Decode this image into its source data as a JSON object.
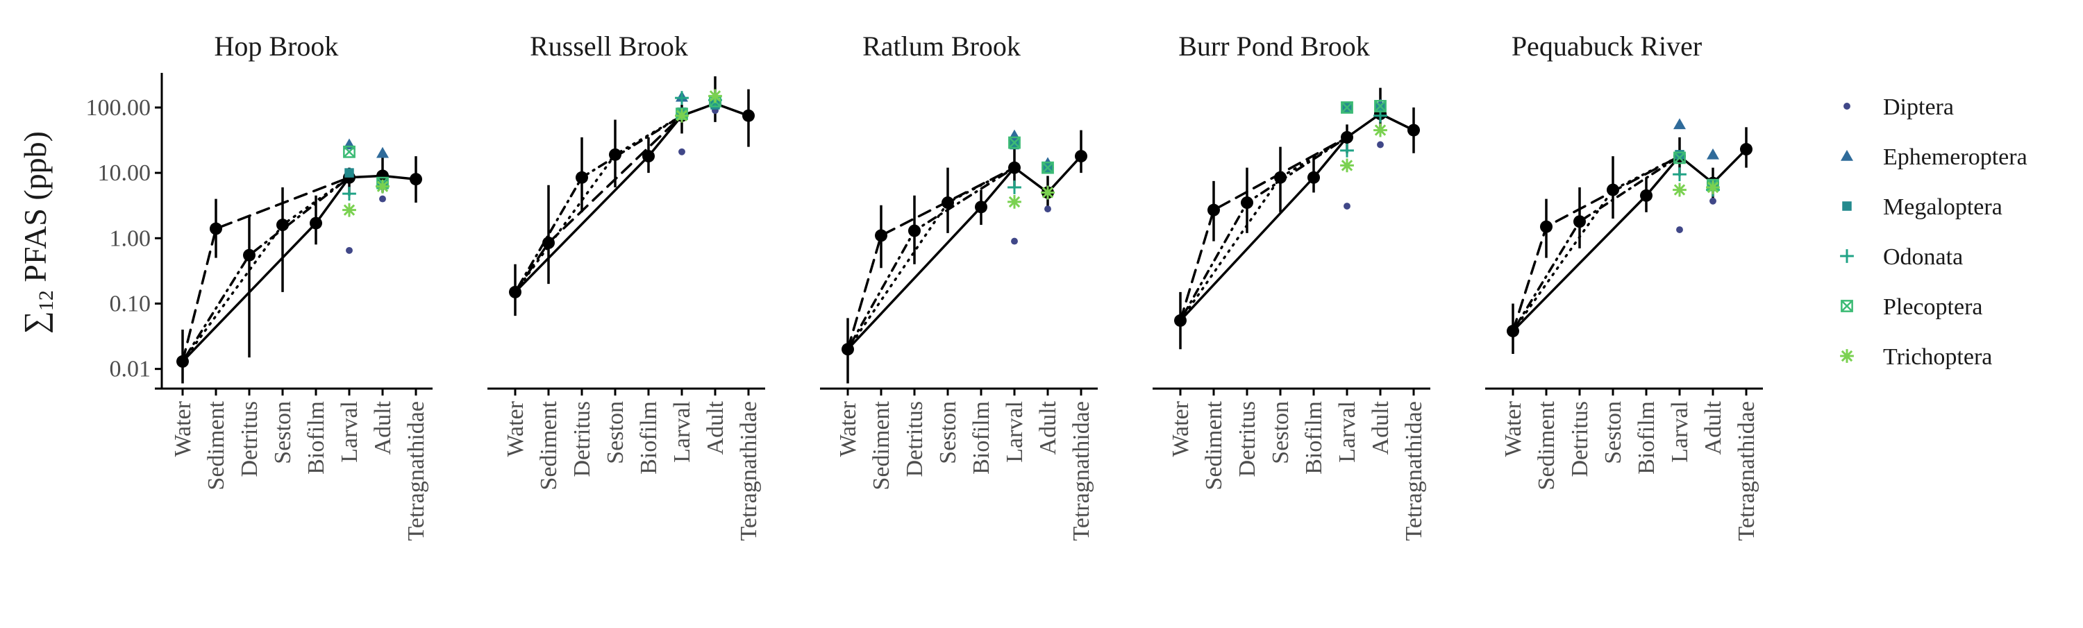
{
  "chart_data": {
    "type": "scatter",
    "ylabel": "∑12 PFAS (ppb)",
    "ylabel_parts": {
      "sigma": "∑",
      "subscript": "12",
      "rest": " PFAS (ppb)"
    },
    "y_scale": "log",
    "ylim": [
      0.005,
      300
    ],
    "y_ticks": [
      0.01,
      0.1,
      1,
      10,
      100
    ],
    "y_tick_labels": [
      "0.01",
      "0.10",
      "1.00",
      "10.00",
      "100.00"
    ],
    "categories": [
      "Water",
      "Sediment",
      "Detritus",
      "Seston",
      "Biofilm",
      "Larval",
      "Adult",
      "Tetragnathidae"
    ],
    "legend_position": "right",
    "taxa": [
      {
        "name": "Diptera",
        "marker": "circle",
        "color": "#404788"
      },
      {
        "name": "Ephemeroptera",
        "marker": "triangle",
        "color": "#2f6b9a"
      },
      {
        "name": "Megaloptera",
        "marker": "square",
        "color": "#238a8d"
      },
      {
        "name": "Odonata",
        "marker": "plus",
        "color": "#20a386"
      },
      {
        "name": "Plecoptera",
        "marker": "boxed-x",
        "color": "#3cbb75"
      },
      {
        "name": "Trichoptera",
        "marker": "asterisk",
        "color": "#7ad151"
      }
    ],
    "pathway_lines": [
      {
        "style": "solid",
        "from": "Water",
        "via": "Biofilm"
      },
      {
        "style": "dotted",
        "from": "Water",
        "via": "Seston"
      },
      {
        "style": "dotdash",
        "from": "Water",
        "via": "Detritus"
      },
      {
        "style": "dashed",
        "from": "Water",
        "via": "Sediment"
      }
    ],
    "panels": [
      {
        "title": "Hop Brook",
        "means": [
          0.013,
          1.4,
          0.55,
          1.6,
          1.7,
          8.5,
          9.0,
          8.0
        ],
        "err_low": [
          0.006,
          0.5,
          0.015,
          0.15,
          0.8,
          4.5,
          5.0,
          3.5
        ],
        "err_high": [
          0.04,
          4.0,
          2.2,
          6.0,
          4.5,
          12.0,
          20.0,
          18.0
        ],
        "taxa_values": {
          "Diptera": [
            0.65,
            4.0
          ],
          "Ephemeroptera": [
            27.0,
            20.0
          ],
          "Megaloptera": [
            10.0,
            6.5
          ],
          "Odonata": [
            4.8,
            6.2
          ],
          "Plecoptera": [
            21.0,
            7.0
          ],
          "Trichoptera": [
            2.7,
            6.2
          ]
        }
      },
      {
        "title": "Russell Brook",
        "means": [
          0.15,
          0.85,
          8.5,
          19.0,
          18.0,
          75.0,
          115.0,
          75.0
        ],
        "err_low": [
          0.065,
          0.2,
          2.5,
          6.0,
          10.0,
          40.0,
          60.0,
          25.0
        ],
        "err_high": [
          0.4,
          6.5,
          35.0,
          65.0,
          35.0,
          110.0,
          300.0,
          190.0
        ],
        "taxa_values": {
          "Diptera": [
            21.0,
            90.0
          ],
          "Ephemeroptera": [
            145.0,
            120.0
          ],
          "Megaloptera": [
            85.0,
            110.0
          ],
          "Odonata": [
            140.0,
            130.0
          ],
          "Plecoptera": [
            80.0,
            125.0
          ],
          "Trichoptera": [
            75.0,
            150.0
          ]
        }
      },
      {
        "title": "Ratlum Brook",
        "means": [
          0.02,
          1.1,
          1.3,
          3.5,
          3.0,
          12.0,
          5.0,
          18.0
        ],
        "err_low": [
          0.006,
          0.35,
          0.4,
          1.2,
          1.6,
          6.0,
          3.0,
          10.0
        ],
        "err_high": [
          0.06,
          3.2,
          4.5,
          12.0,
          5.5,
          25.0,
          9.0,
          45.0
        ],
        "taxa_values": {
          "Diptera": [
            0.9,
            2.8
          ],
          "Ephemeroptera": [
            37.0,
            14.0
          ],
          "Megaloptera": [
            27.0,
            12.0
          ],
          "Odonata": [
            6.0,
            5.0
          ],
          "Plecoptera": [
            29.0,
            12.0
          ],
          "Trichoptera": [
            3.6,
            5.0
          ]
        }
      },
      {
        "title": "Burr Pond Brook",
        "means": [
          0.055,
          2.7,
          3.5,
          8.5,
          8.5,
          35.0,
          80.0,
          45.0
        ],
        "err_low": [
          0.02,
          0.9,
          1.2,
          2.5,
          5.0,
          20.0,
          45.0,
          20.0
        ],
        "err_high": [
          0.15,
          7.5,
          12.0,
          25.0,
          18.0,
          55.0,
          200.0,
          100.0
        ],
        "taxa_values": {
          "Diptera": [
            3.1,
            27.0
          ],
          "Ephemeroptera": [
            100.0,
            110.0
          ],
          "Megaloptera": [
            100.0,
            100.0
          ],
          "Odonata": [
            22.0,
            75.0
          ],
          "Plecoptera": [
            100.0,
            105.0
          ],
          "Trichoptera": [
            13.0,
            45.0
          ]
        }
      },
      {
        "title": "Pequabuck River",
        "means": [
          0.038,
          1.5,
          1.8,
          5.5,
          4.5,
          18.0,
          7.0,
          23.0
        ],
        "err_low": [
          0.017,
          0.5,
          0.7,
          2.0,
          2.5,
          9.0,
          4.0,
          12.0
        ],
        "err_high": [
          0.1,
          4.0,
          6.0,
          18.0,
          8.5,
          35.0,
          12.0,
          50.0
        ],
        "taxa_values": {
          "Diptera": [
            1.35,
            3.7
          ],
          "Ephemeroptera": [
            55.0,
            19.0
          ],
          "Megaloptera": [
            19.0,
            6.5
          ],
          "Odonata": [
            9.5,
            5.5
          ],
          "Plecoptera": [
            17.0,
            6.5
          ],
          "Trichoptera": [
            5.5,
            6.0
          ]
        }
      }
    ]
  }
}
